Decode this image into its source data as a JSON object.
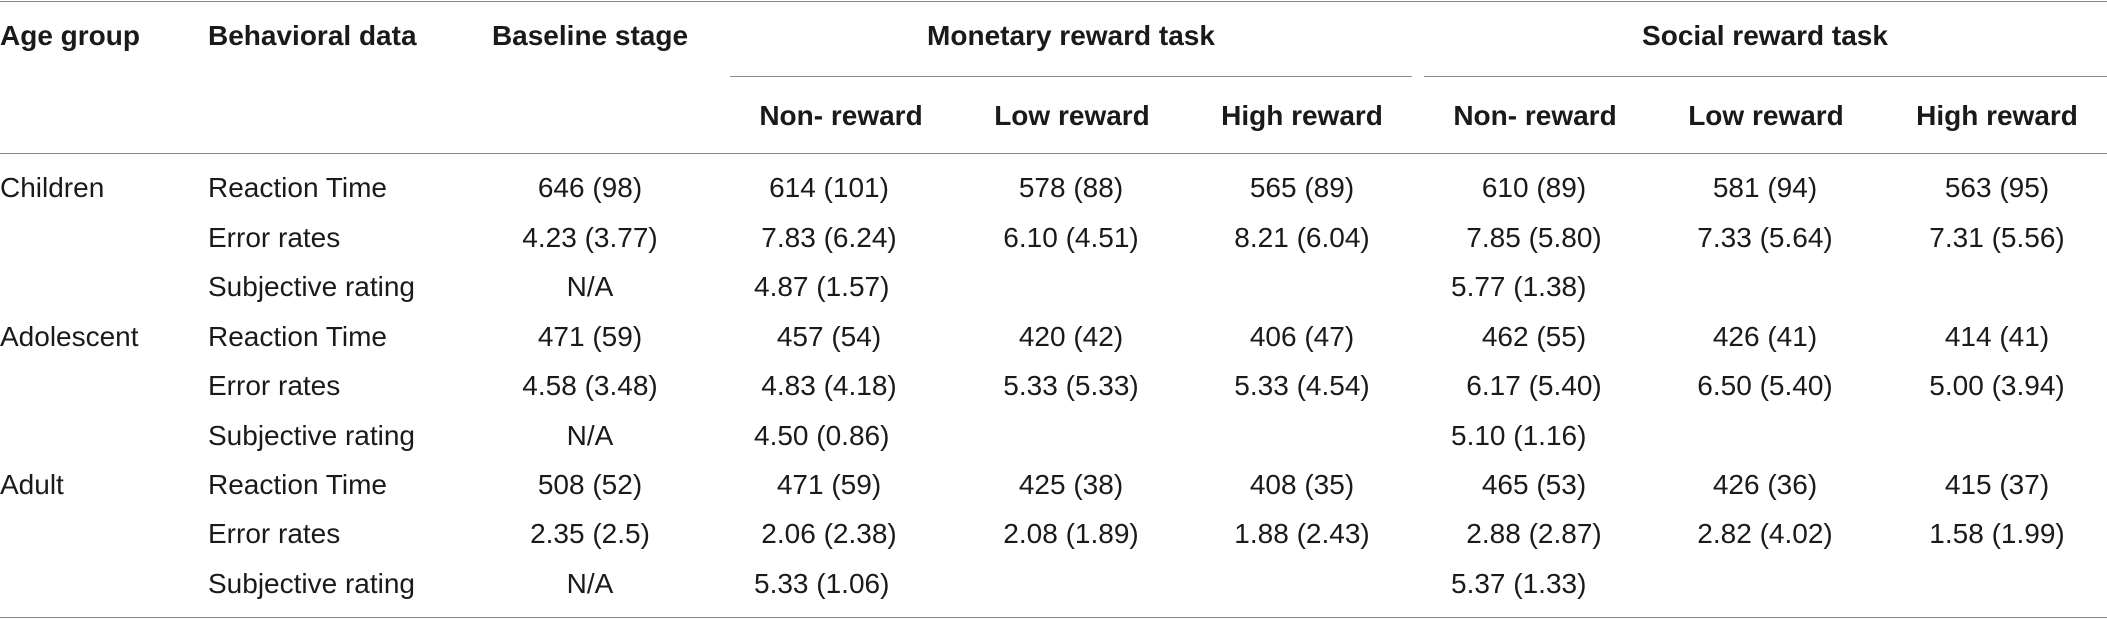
{
  "headers": {
    "age_group": "Age group",
    "behavioral_data": "Behavioral data",
    "baseline_stage": "Baseline stage",
    "monetary_task": "Monetary reward task",
    "social_task": "Social reward task",
    "sub": {
      "m_non": "Non- reward",
      "m_low": "Low reward",
      "m_high": "High reward",
      "s_non": "Non- reward",
      "s_low": "Low reward",
      "s_high": "High reward"
    }
  },
  "groups": [
    {
      "name": "Children",
      "rows": [
        {
          "measure": "Reaction Time",
          "baseline": "646 (98)",
          "m_non": "614 (101)",
          "m_low": "578 (88)",
          "m_high": "565 (89)",
          "s_non": "610 (89)",
          "s_low": "581 (94)",
          "s_high": "563 (95)"
        },
        {
          "measure": "Error rates",
          "baseline": "4.23 (3.77)",
          "m_non": "7.83 (6.24)",
          "m_low": "6.10 (4.51)",
          "m_high": "8.21 (6.04)",
          "s_non": "7.85 (5.80)",
          "s_low": "7.33 (5.64)",
          "s_high": "7.31 (5.56)"
        },
        {
          "measure": "Subjective rating",
          "baseline": "N/A",
          "m_rating": "4.87 (1.57)",
          "s_rating": "5.77 (1.38)"
        }
      ]
    },
    {
      "name": "Adolescent",
      "rows": [
        {
          "measure": "Reaction Time",
          "baseline": "471 (59)",
          "m_non": "457 (54)",
          "m_low": "420 (42)",
          "m_high": "406 (47)",
          "s_non": "462 (55)",
          "s_low": "426 (41)",
          "s_high": "414 (41)"
        },
        {
          "measure": "Error rates",
          "baseline": "4.58 (3.48)",
          "m_non": "4.83 (4.18)",
          "m_low": "5.33 (5.33)",
          "m_high": "5.33 (4.54)",
          "s_non": "6.17 (5.40)",
          "s_low": "6.50 (5.40)",
          "s_high": "5.00 (3.94)"
        },
        {
          "measure": "Subjective rating",
          "baseline": "N/A",
          "m_rating": "4.50 (0.86)",
          "s_rating": "5.10 (1.16)"
        }
      ]
    },
    {
      "name": "Adult",
      "rows": [
        {
          "measure": "Reaction Time",
          "baseline": "508 (52)",
          "m_non": "471 (59)",
          "m_low": "425 (38)",
          "m_high": "408 (35)",
          "s_non": "465 (53)",
          "s_low": "426 (36)",
          "s_high": "415 (37)"
        },
        {
          "measure": "Error rates",
          "baseline": "2.35 (2.5)",
          "m_non": "2.06 (2.38)",
          "m_low": "2.08 (1.89)",
          "m_high": "1.88 (2.43)",
          "s_non": "2.88 (2.87)",
          "s_low": "2.82 (4.02)",
          "s_high": "1.58 (1.99)"
        },
        {
          "measure": "Subjective rating",
          "baseline": "N/A",
          "m_rating": "5.33 (1.06)",
          "s_rating": "5.37 (1.33)"
        }
      ]
    }
  ]
}
